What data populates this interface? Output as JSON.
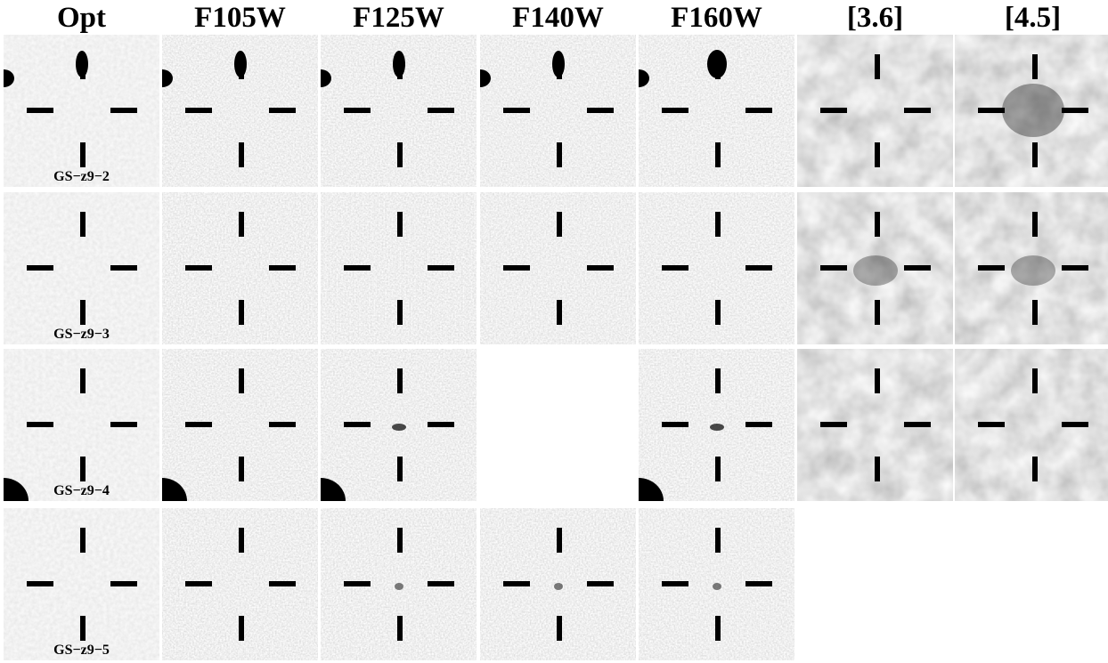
{
  "columns": [
    "Opt",
    "F105W",
    "F125W",
    "F140W",
    "F160W",
    "[3.6]",
    "[4.5]"
  ],
  "rows": [
    {
      "label": "GS−z9−2",
      "available": [
        true,
        true,
        true,
        true,
        true,
        true,
        true
      ]
    },
    {
      "label": "GS−z9−3",
      "available": [
        true,
        true,
        true,
        true,
        true,
        true,
        true
      ]
    },
    {
      "label": "GS−z9−4",
      "available": [
        true,
        true,
        true,
        false,
        true,
        true,
        true
      ]
    },
    {
      "label": "GS−z9−5",
      "available": [
        true,
        true,
        true,
        true,
        true,
        false,
        false
      ]
    }
  ],
  "colors": {
    "background": "#ffffff",
    "marker": "#000000",
    "sky_light": "#e6e6e6",
    "sky_dark": "#b4b4b4"
  }
}
